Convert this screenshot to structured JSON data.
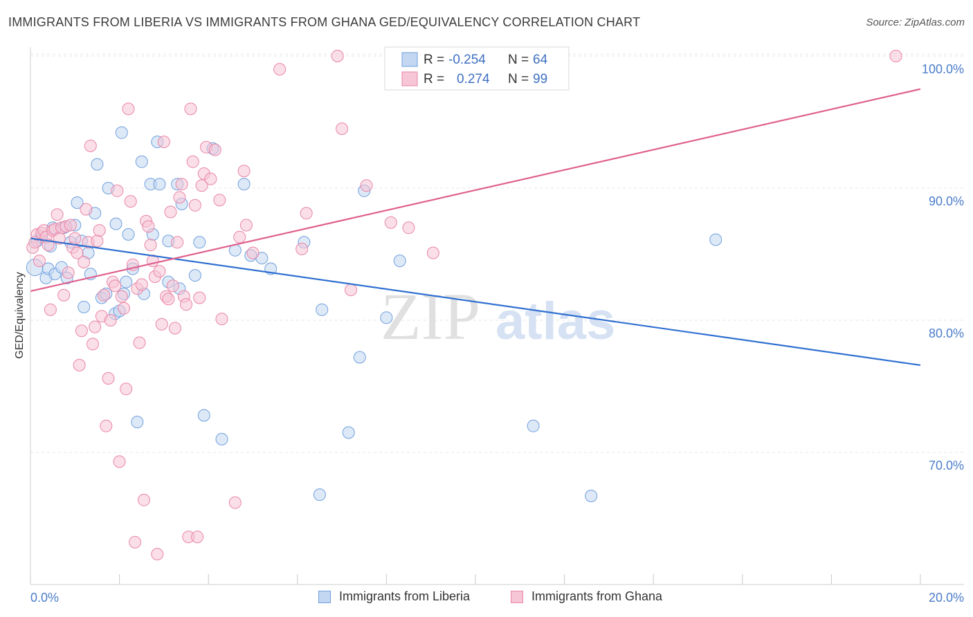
{
  "header": {
    "title": "IMMIGRANTS FROM LIBERIA VS IMMIGRANTS FROM GHANA GED/EQUIVALENCY CORRELATION CHART",
    "source": "Source: ZipAtlas.com"
  },
  "watermark": {
    "zip": "ZIP",
    "atlas": "atlas"
  },
  "legend_box": {
    "rows": [
      {
        "r_label": "R =",
        "r_value": "-0.254",
        "n_label": "N =",
        "n_value": "64"
      },
      {
        "r_label": "R =",
        "r_value": "0.274",
        "n_label": "N =",
        "n_value": "99"
      }
    ]
  },
  "chart_data": {
    "type": "scatter",
    "title": "IMMIGRANTS FROM LIBERIA VS IMMIGRANTS FROM GHANA GED/EQUIVALENCY CORRELATION CHART",
    "xlabel": "",
    "ylabel": "GED/Equivalency",
    "xlim": [
      0,
      20
    ],
    "ylim": [
      61,
      101.5
    ],
    "x_tick_labels": [
      "0.0%",
      "20.0%"
    ],
    "y_ticks": [
      70,
      80,
      90,
      100
    ],
    "y_tick_labels": [
      "70.0%",
      "80.0%",
      "90.0%",
      "100.0%"
    ],
    "grid": true,
    "legend_position": "bottom",
    "series": [
      {
        "name": "Immigrants from Liberia",
        "color": "#6f9fdc",
        "fill": "#c3d7f2",
        "r": -0.254,
        "n": 64,
        "trend": {
          "x": [
            0,
            20
          ],
          "y": [
            86.2,
            76.6
          ]
        },
        "points": [
          [
            0.1,
            84.0
          ],
          [
            0.15,
            86.0
          ],
          [
            0.25,
            86.3
          ],
          [
            0.35,
            83.2
          ],
          [
            0.4,
            83.9
          ],
          [
            0.45,
            85.6
          ],
          [
            0.5,
            87.0
          ],
          [
            0.55,
            83.5
          ],
          [
            0.7,
            84.0
          ],
          [
            0.75,
            87.0
          ],
          [
            0.8,
            87.1
          ],
          [
            0.82,
            83.2
          ],
          [
            0.9,
            85.9
          ],
          [
            1.0,
            87.2
          ],
          [
            1.05,
            88.9
          ],
          [
            1.15,
            86.0
          ],
          [
            1.2,
            81.0
          ],
          [
            1.3,
            85.1
          ],
          [
            1.35,
            83.5
          ],
          [
            1.45,
            88.1
          ],
          [
            1.5,
            91.8
          ],
          [
            1.6,
            81.7
          ],
          [
            1.7,
            82.0
          ],
          [
            1.75,
            90.0
          ],
          [
            1.9,
            80.5
          ],
          [
            1.92,
            87.3
          ],
          [
            2.0,
            80.7
          ],
          [
            2.05,
            94.2
          ],
          [
            2.1,
            82.0
          ],
          [
            2.15,
            82.9
          ],
          [
            2.2,
            86.5
          ],
          [
            2.3,
            83.9
          ],
          [
            2.4,
            72.3
          ],
          [
            2.5,
            92.0
          ],
          [
            2.55,
            82.0
          ],
          [
            2.7,
            90.3
          ],
          [
            2.75,
            86.5
          ],
          [
            2.85,
            93.5
          ],
          [
            2.9,
            90.3
          ],
          [
            3.1,
            86.0
          ],
          [
            3.1,
            82.9
          ],
          [
            3.3,
            90.3
          ],
          [
            3.35,
            82.4
          ],
          [
            3.4,
            88.8
          ],
          [
            3.7,
            83.4
          ],
          [
            3.8,
            85.9
          ],
          [
            3.9,
            72.8
          ],
          [
            4.1,
            93.0
          ],
          [
            4.3,
            71.0
          ],
          [
            4.6,
            85.3
          ],
          [
            4.8,
            90.3
          ],
          [
            4.95,
            84.9
          ],
          [
            5.2,
            84.7
          ],
          [
            5.4,
            83.9
          ],
          [
            6.15,
            85.9
          ],
          [
            6.5,
            66.8
          ],
          [
            6.55,
            80.8
          ],
          [
            7.15,
            71.5
          ],
          [
            7.4,
            77.2
          ],
          [
            7.5,
            89.8
          ],
          [
            8.0,
            80.2
          ],
          [
            8.3,
            84.5
          ],
          [
            11.3,
            72.0
          ],
          [
            12.6,
            66.7
          ],
          [
            15.4,
            86.1
          ]
        ]
      },
      {
        "name": "Immigrants from Ghana",
        "color": "#e985a6",
        "fill": "#f6c5d6",
        "r": 0.274,
        "n": 99,
        "trend": {
          "x": [
            0,
            20
          ],
          "y": [
            82.2,
            97.5
          ]
        },
        "points": [
          [
            0.05,
            85.5
          ],
          [
            0.1,
            85.9
          ],
          [
            0.15,
            86.5
          ],
          [
            0.2,
            84.5
          ],
          [
            0.25,
            86.6
          ],
          [
            0.3,
            86.8
          ],
          [
            0.35,
            86.3
          ],
          [
            0.4,
            85.7
          ],
          [
            0.45,
            80.8
          ],
          [
            0.5,
            86.8
          ],
          [
            0.55,
            86.9
          ],
          [
            0.6,
            88.0
          ],
          [
            0.65,
            86.2
          ],
          [
            0.7,
            87.0
          ],
          [
            0.75,
            81.9
          ],
          [
            0.8,
            87.1
          ],
          [
            0.85,
            83.6
          ],
          [
            0.9,
            87.2
          ],
          [
            0.95,
            85.5
          ],
          [
            1.0,
            86.2
          ],
          [
            1.05,
            85.1
          ],
          [
            1.1,
            76.6
          ],
          [
            1.15,
            79.2
          ],
          [
            1.2,
            84.4
          ],
          [
            1.25,
            88.4
          ],
          [
            1.3,
            85.9
          ],
          [
            1.35,
            93.2
          ],
          [
            1.4,
            78.2
          ],
          [
            1.45,
            79.5
          ],
          [
            1.5,
            86.0
          ],
          [
            1.55,
            86.8
          ],
          [
            1.6,
            80.3
          ],
          [
            1.65,
            81.9
          ],
          [
            1.7,
            72.0
          ],
          [
            1.75,
            75.6
          ],
          [
            1.8,
            80.0
          ],
          [
            1.85,
            82.9
          ],
          [
            1.9,
            82.6
          ],
          [
            1.95,
            89.8
          ],
          [
            2.0,
            69.3
          ],
          [
            2.05,
            81.8
          ],
          [
            2.1,
            80.9
          ],
          [
            2.15,
            74.8
          ],
          [
            2.2,
            96.0
          ],
          [
            2.25,
            89.0
          ],
          [
            2.3,
            84.2
          ],
          [
            2.35,
            63.2
          ],
          [
            2.4,
            82.4
          ],
          [
            2.45,
            78.3
          ],
          [
            2.5,
            82.7
          ],
          [
            2.55,
            66.4
          ],
          [
            2.6,
            87.5
          ],
          [
            2.65,
            87.1
          ],
          [
            2.7,
            85.7
          ],
          [
            2.75,
            84.5
          ],
          [
            2.8,
            83.3
          ],
          [
            2.85,
            62.3
          ],
          [
            2.9,
            83.7
          ],
          [
            2.95,
            79.7
          ],
          [
            3.0,
            93.5
          ],
          [
            3.05,
            81.8
          ],
          [
            3.1,
            81.6
          ],
          [
            3.15,
            88.2
          ],
          [
            3.2,
            82.6
          ],
          [
            3.25,
            79.4
          ],
          [
            3.3,
            85.9
          ],
          [
            3.35,
            89.3
          ],
          [
            3.4,
            90.3
          ],
          [
            3.45,
            81.8
          ],
          [
            3.5,
            81.2
          ],
          [
            3.55,
            63.6
          ],
          [
            3.6,
            96.0
          ],
          [
            3.65,
            92.0
          ],
          [
            3.7,
            88.7
          ],
          [
            3.75,
            63.6
          ],
          [
            3.8,
            81.7
          ],
          [
            3.85,
            90.2
          ],
          [
            3.9,
            91.1
          ],
          [
            3.95,
            93.1
          ],
          [
            4.05,
            90.7
          ],
          [
            4.15,
            92.9
          ],
          [
            4.25,
            89.1
          ],
          [
            4.3,
            80.1
          ],
          [
            4.6,
            66.2
          ],
          [
            4.7,
            86.3
          ],
          [
            4.8,
            91.3
          ],
          [
            4.85,
            87.2
          ],
          [
            5.0,
            85.1
          ],
          [
            5.6,
            99.0
          ],
          [
            6.1,
            85.4
          ],
          [
            6.2,
            88.1
          ],
          [
            6.9,
            100.0
          ],
          [
            7.0,
            94.5
          ],
          [
            7.2,
            82.3
          ],
          [
            7.55,
            90.2
          ],
          [
            8.1,
            87.4
          ],
          [
            8.5,
            87.0
          ],
          [
            9.05,
            85.1
          ],
          [
            19.45,
            100.0
          ]
        ]
      }
    ]
  }
}
